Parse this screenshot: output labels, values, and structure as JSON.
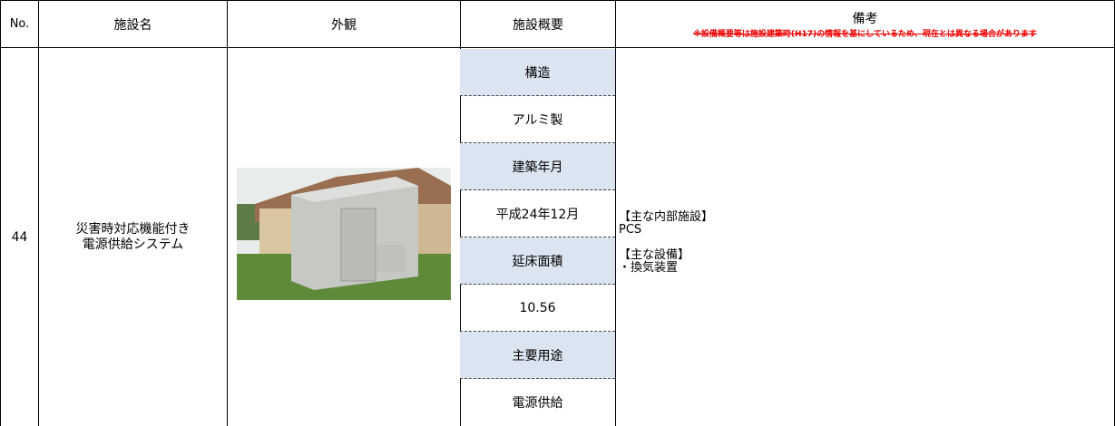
{
  "header": {
    "no": "No.",
    "name": "施設名",
    "appearance": "外観",
    "summary": "施設概要",
    "remarks": "備考",
    "remarks_note": "※設備概要等は施設建築時(H17)の情報を基にしているため、現在とは異なる場合があります"
  },
  "rows": [
    {
      "no": "44",
      "name": [
        "災害時対応機能付き",
        "電源供給システム"
      ],
      "summary": [
        "構造",
        "アルミ製",
        "建築年月",
        "平成24年12月",
        "延床面積",
        "10.56",
        "主要用途",
        "電源供給"
      ],
      "remarks": [
        "【主な内部施設】",
        "PCS",
        "【主な設備】",
        "・換気装置"
      ]
    }
  ]
}
